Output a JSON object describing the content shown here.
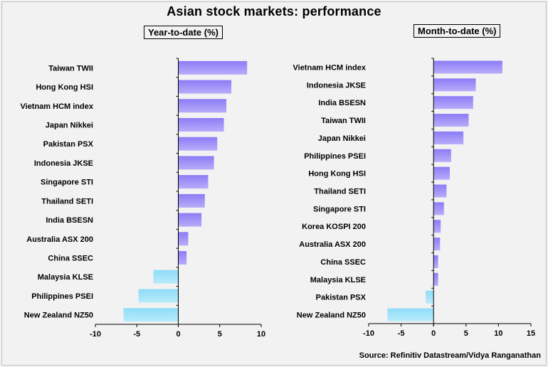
{
  "title": "Asian stock markets: performance",
  "source": "Source: Refinitiv Datastream/Vidya Ranganathan",
  "colors": {
    "positive_top": "#8c7cf7",
    "positive_bottom": "#b7adf9",
    "negative_top": "#8fdcf7",
    "negative_bottom": "#b9ebfb",
    "axis": "#000000"
  },
  "chart_data": [
    {
      "type": "bar",
      "orientation": "horizontal",
      "title": "Year-to-date (%)",
      "categories": [
        "Taiwan TWII",
        "Hong Kong HSI",
        "Vietnam HCM index",
        "Japan Nikkei",
        "Pakistan PSX",
        "Indonesia JKSE",
        "Singapore STI",
        "Thailand SETI",
        "India BSESN",
        "Australia ASX 200",
        "China SSEC",
        "Malaysia KLSE",
        "Philippines PSEI",
        "New Zealand NZ50"
      ],
      "values": [
        8.3,
        6.4,
        5.8,
        5.5,
        4.7,
        4.3,
        3.6,
        3.2,
        2.8,
        1.2,
        1.0,
        -3.0,
        -4.8,
        -6.6
      ],
      "xlim": [
        -10,
        10
      ],
      "xticks": [
        -10,
        -5,
        0,
        5,
        10
      ],
      "grid": false
    },
    {
      "type": "bar",
      "orientation": "horizontal",
      "title": "Month-to-date (%)",
      "categories": [
        "Vietnam HCM index",
        "Indonesia JKSE",
        "India BSESN",
        "Taiwan TWII",
        "Japan Nikkei",
        "Philippines PSEI",
        "Hong Kong HSI",
        "Thailand SETI",
        "Singapore STI",
        "Korea KOSPI 200",
        "Australia ASX 200",
        "China SSEC",
        "Malaysia KLSE",
        "Pakistan PSX",
        "New Zealand NZ50"
      ],
      "values": [
        10.6,
        6.5,
        6.1,
        5.4,
        4.6,
        2.7,
        2.5,
        2.0,
        1.6,
        1.1,
        1.0,
        0.7,
        0.7,
        -1.2,
        -7.1
      ],
      "xlim": [
        -10,
        15
      ],
      "xticks": [
        -10,
        -5,
        0,
        5,
        10,
        15
      ],
      "grid": false
    }
  ]
}
